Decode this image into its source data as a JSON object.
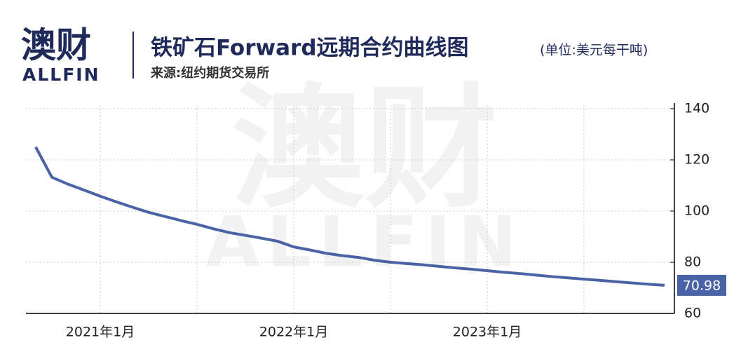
{
  "header": {
    "logo": "澳财",
    "logo_sub": "ALLFIN",
    "title": "铁矿石Forward远期合约曲线图",
    "unit": "(单位:美元每干吨)",
    "source": "来源:纽约期货交易所"
  },
  "chart_data": {
    "type": "line",
    "categories": [
      null,
      null,
      null,
      null,
      "2021年1月",
      null,
      null,
      null,
      null,
      null,
      null,
      null,
      null,
      null,
      null,
      null,
      "2022年1月",
      null,
      null,
      null,
      null,
      null,
      null,
      null,
      null,
      null,
      null,
      null,
      "2023年1月",
      null,
      null,
      null,
      null,
      null,
      null,
      null,
      null,
      null,
      null,
      null
    ],
    "series": [
      {
        "color": "#4a62a6",
        "values": [
          125.0,
          113.2,
          110.5,
          108.2,
          105.8,
          103.6,
          101.5,
          99.5,
          97.9,
          96.3,
          94.8,
          93.1,
          91.6,
          90.5,
          89.4,
          88.2,
          86.0,
          84.8,
          83.5,
          82.6,
          81.9,
          80.8,
          80.0,
          79.5,
          79.0,
          78.4,
          77.8,
          77.3,
          76.7,
          76.1,
          75.6,
          75.0,
          74.4,
          73.9,
          73.4,
          72.9,
          72.4,
          71.9,
          71.4,
          70.98
        ]
      }
    ],
    "ylim": [
      60,
      140
    ],
    "yticks": [
      60,
      80,
      100,
      120,
      140
    ],
    "grid": true
  }
}
